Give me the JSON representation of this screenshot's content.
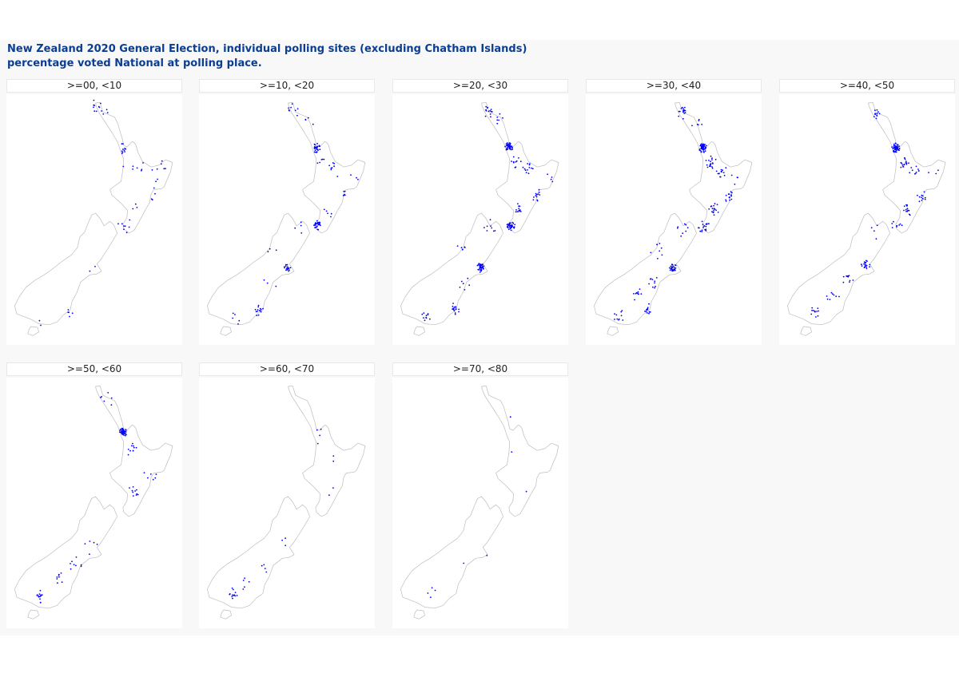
{
  "title_line_1": "New Zealand 2020 General Election, individual polling sites (excluding Chatham Islands)",
  "title_line_2": "percentage voted National at polling place.",
  "colors": {
    "background": "#f8f8f8",
    "panel": "#ffffff",
    "title": "#0b3d91",
    "coastline": "#bdbdbd",
    "points": "#0000ff"
  },
  "chart_data": {
    "type": "scatter",
    "map": "New Zealand (North Island and South Island outlines)",
    "facet_variable": "percentage voted National at polling place",
    "panels": [
      {
        "label": ">=00, <10",
        "clusters": [
          {
            "lon": 172.9,
            "lat": -34.6,
            "n": 8
          },
          {
            "lon": 173.3,
            "lat": -35.0,
            "n": 5
          },
          {
            "lon": 174.8,
            "lat": -36.95,
            "n": 10
          },
          {
            "lon": 175.3,
            "lat": -37.8,
            "n": 3
          },
          {
            "lon": 176.2,
            "lat": -38.1,
            "n": 4
          },
          {
            "lon": 177.1,
            "lat": -38.5,
            "n": 3
          },
          {
            "lon": 177.9,
            "lat": -38.05,
            "n": 5
          },
          {
            "lon": 176.9,
            "lat": -39.5,
            "n": 4
          },
          {
            "lon": 175.6,
            "lat": -40.4,
            "n": 3
          },
          {
            "lon": 174.9,
            "lat": -41.2,
            "n": 8
          },
          {
            "lon": 172.6,
            "lat": -43.5,
            "n": 2
          },
          {
            "lon": 170.5,
            "lat": -45.9,
            "n": 5
          },
          {
            "lon": 168.4,
            "lat": -46.4,
            "n": 2
          }
        ]
      },
      {
        "label": ">=10, <20",
        "clusters": [
          {
            "lon": 173.2,
            "lat": -34.8,
            "n": 8
          },
          {
            "lon": 174.3,
            "lat": -35.7,
            "n": 4
          },
          {
            "lon": 174.8,
            "lat": -36.9,
            "n": 28
          },
          {
            "lon": 175.3,
            "lat": -37.6,
            "n": 5
          },
          {
            "lon": 176.1,
            "lat": -38.1,
            "n": 8
          },
          {
            "lon": 177.6,
            "lat": -38.4,
            "n": 3
          },
          {
            "lon": 176.9,
            "lat": -39.5,
            "n": 6
          },
          {
            "lon": 175.6,
            "lat": -40.4,
            "n": 5
          },
          {
            "lon": 174.9,
            "lat": -41.15,
            "n": 28
          },
          {
            "lon": 173.3,
            "lat": -41.3,
            "n": 4
          },
          {
            "lon": 171.2,
            "lat": -42.45,
            "n": 3
          },
          {
            "lon": 172.6,
            "lat": -43.55,
            "n": 22
          },
          {
            "lon": 171.2,
            "lat": -44.4,
            "n": 3
          },
          {
            "lon": 170.5,
            "lat": -45.85,
            "n": 14
          },
          {
            "lon": 168.35,
            "lat": -46.4,
            "n": 5
          }
        ]
      },
      {
        "label": ">=20, <30",
        "clusters": [
          {
            "lon": 173.2,
            "lat": -34.9,
            "n": 14
          },
          {
            "lon": 174.1,
            "lat": -35.3,
            "n": 6
          },
          {
            "lon": 174.75,
            "lat": -36.85,
            "n": 45
          },
          {
            "lon": 175.3,
            "lat": -37.7,
            "n": 10
          },
          {
            "lon": 176.2,
            "lat": -38.1,
            "n": 12
          },
          {
            "lon": 177.9,
            "lat": -38.6,
            "n": 4
          },
          {
            "lon": 176.85,
            "lat": -39.5,
            "n": 12
          },
          {
            "lon": 175.5,
            "lat": -40.3,
            "n": 12
          },
          {
            "lon": 174.9,
            "lat": -41.2,
            "n": 35
          },
          {
            "lon": 173.2,
            "lat": -41.3,
            "n": 8
          },
          {
            "lon": 171.2,
            "lat": -42.5,
            "n": 6
          },
          {
            "lon": 172.6,
            "lat": -43.5,
            "n": 40
          },
          {
            "lon": 171.2,
            "lat": -44.4,
            "n": 6
          },
          {
            "lon": 170.5,
            "lat": -45.8,
            "n": 18
          },
          {
            "lon": 168.4,
            "lat": -46.3,
            "n": 10
          }
        ]
      },
      {
        "label": ">=30, <40",
        "clusters": [
          {
            "lon": 173.3,
            "lat": -35.0,
            "n": 16
          },
          {
            "lon": 174.2,
            "lat": -35.6,
            "n": 6
          },
          {
            "lon": 174.8,
            "lat": -36.9,
            "n": 60
          },
          {
            "lon": 175.4,
            "lat": -37.7,
            "n": 18
          },
          {
            "lon": 176.2,
            "lat": -38.2,
            "n": 14
          },
          {
            "lon": 177.4,
            "lat": -38.5,
            "n": 4
          },
          {
            "lon": 176.8,
            "lat": -39.6,
            "n": 14
          },
          {
            "lon": 175.6,
            "lat": -40.3,
            "n": 16
          },
          {
            "lon": 174.85,
            "lat": -41.2,
            "n": 20
          },
          {
            "lon": 173.2,
            "lat": -41.4,
            "n": 8
          },
          {
            "lon": 171.3,
            "lat": -42.6,
            "n": 8
          },
          {
            "lon": 172.5,
            "lat": -43.5,
            "n": 30
          },
          {
            "lon": 171.0,
            "lat": -44.3,
            "n": 10
          },
          {
            "lon": 169.8,
            "lat": -45.0,
            "n": 10
          },
          {
            "lon": 170.5,
            "lat": -45.8,
            "n": 12
          },
          {
            "lon": 168.4,
            "lat": -46.2,
            "n": 10
          }
        ]
      },
      {
        "label": ">=40, <50",
        "clusters": [
          {
            "lon": 173.3,
            "lat": -35.1,
            "n": 12
          },
          {
            "lon": 174.75,
            "lat": -36.9,
            "n": 60
          },
          {
            "lon": 175.4,
            "lat": -37.8,
            "n": 16
          },
          {
            "lon": 176.2,
            "lat": -38.2,
            "n": 10
          },
          {
            "lon": 177.6,
            "lat": -38.4,
            "n": 3
          },
          {
            "lon": 176.8,
            "lat": -39.6,
            "n": 12
          },
          {
            "lon": 175.6,
            "lat": -40.3,
            "n": 14
          },
          {
            "lon": 174.8,
            "lat": -41.2,
            "n": 8
          },
          {
            "lon": 173.1,
            "lat": -41.5,
            "n": 4
          },
          {
            "lon": 172.4,
            "lat": -43.4,
            "n": 18
          },
          {
            "lon": 171.1,
            "lat": -44.2,
            "n": 10
          },
          {
            "lon": 169.9,
            "lat": -45.0,
            "n": 8
          },
          {
            "lon": 168.6,
            "lat": -45.9,
            "n": 12
          }
        ]
      },
      {
        "label": ">=50, <60",
        "clusters": [
          {
            "lon": 173.4,
            "lat": -35.2,
            "n": 6
          },
          {
            "lon": 174.75,
            "lat": -36.95,
            "n": 40
          },
          {
            "lon": 175.4,
            "lat": -37.9,
            "n": 10
          },
          {
            "lon": 176.8,
            "lat": -39.4,
            "n": 6
          },
          {
            "lon": 175.6,
            "lat": -40.2,
            "n": 10
          },
          {
            "lon": 172.3,
            "lat": -43.3,
            "n": 5
          },
          {
            "lon": 171.1,
            "lat": -44.3,
            "n": 8
          },
          {
            "lon": 169.8,
            "lat": -45.1,
            "n": 8
          },
          {
            "lon": 168.4,
            "lat": -46.0,
            "n": 14
          }
        ]
      },
      {
        "label": ">=60, <70",
        "clusters": [
          {
            "lon": 174.9,
            "lat": -37.1,
            "n": 4
          },
          {
            "lon": 176.2,
            "lat": -38.3,
            "n": 2
          },
          {
            "lon": 175.7,
            "lat": -40.0,
            "n": 2
          },
          {
            "lon": 172.2,
            "lat": -43.2,
            "n": 3
          },
          {
            "lon": 170.9,
            "lat": -44.6,
            "n": 4
          },
          {
            "lon": 169.4,
            "lat": -45.3,
            "n": 5
          },
          {
            "lon": 168.5,
            "lat": -45.9,
            "n": 12
          }
        ]
      },
      {
        "label": ">=70, <80",
        "clusters": [
          {
            "lon": 174.6,
            "lat": -36.3,
            "n": 1
          },
          {
            "lon": 175.4,
            "lat": -37.9,
            "n": 1
          },
          {
            "lon": 176.1,
            "lat": -40.2,
            "n": 1
          },
          {
            "lon": 172.6,
            "lat": -43.6,
            "n": 1
          },
          {
            "lon": 171.3,
            "lat": -44.2,
            "n": 1
          },
          {
            "lon": 168.8,
            "lat": -46.0,
            "n": 4
          }
        ]
      }
    ]
  }
}
